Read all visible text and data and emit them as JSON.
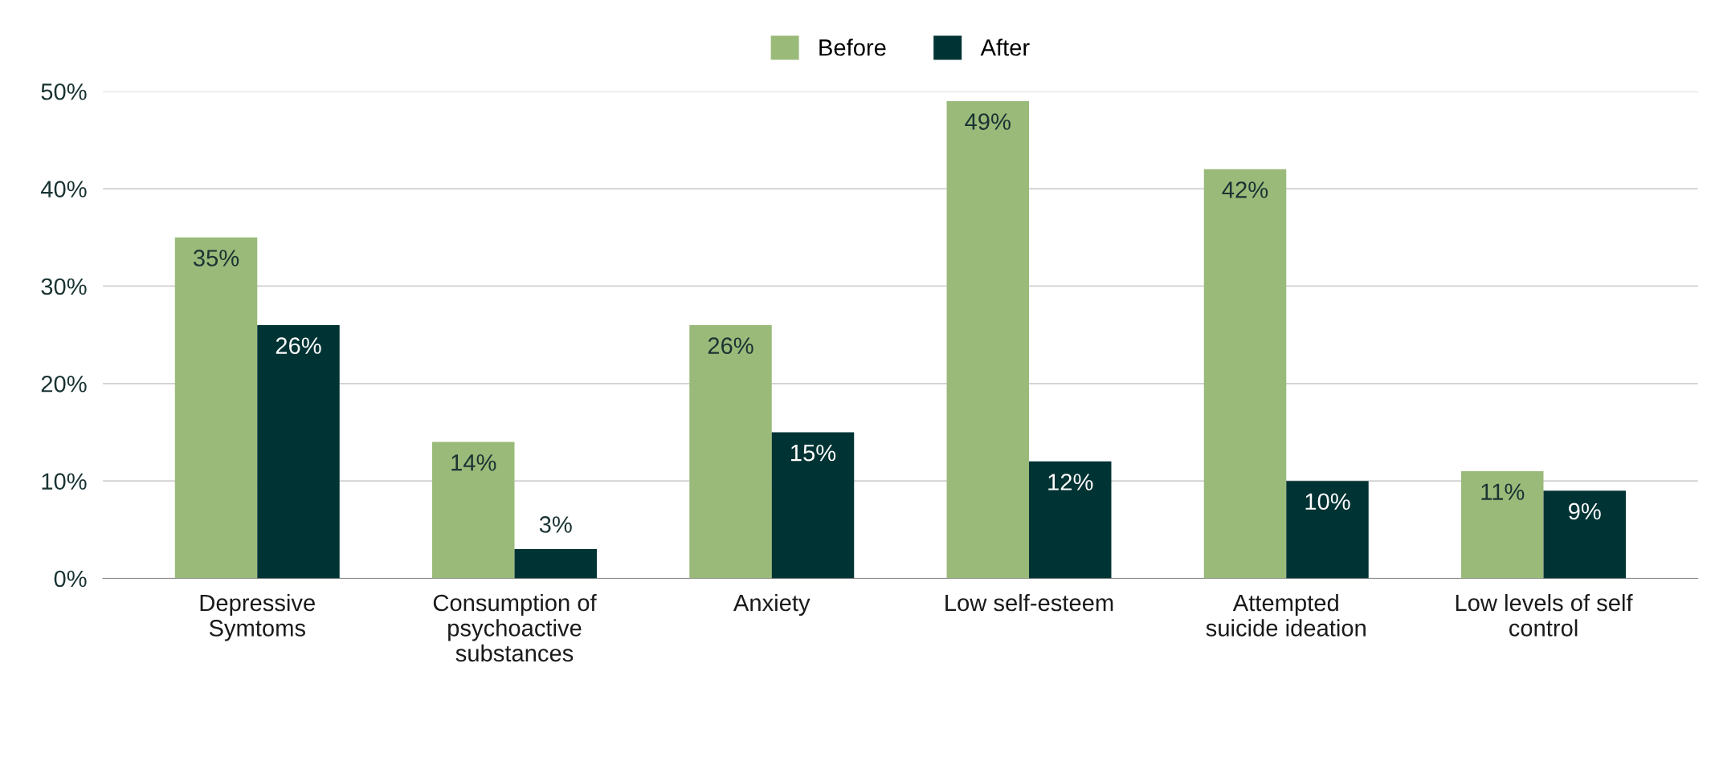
{
  "chart_data": {
    "type": "bar",
    "categories": [
      "Depressive\nSymtoms",
      "Consumption of\npsychoactive\nsubstances",
      "Anxiety",
      "Low self-esteem",
      "Attempted\nsuicide ideation",
      "Low levels of self\ncontrol"
    ],
    "series": [
      {
        "name": "Before",
        "color": "#9aba7a",
        "values": [
          35,
          14,
          26,
          49,
          42,
          11
        ],
        "value_labels": [
          "35%",
          "14%",
          "26%",
          "49%",
          "42%",
          "11%"
        ]
      },
      {
        "name": "After",
        "color": "#003333",
        "values": [
          26,
          3,
          15,
          12,
          10,
          9
        ],
        "value_labels": [
          "26%",
          "3%",
          "15%",
          "12%",
          "10%",
          "9%"
        ]
      }
    ],
    "ylim": [
      0,
      50
    ],
    "yticks": [
      {
        "value": 0,
        "label": "0%"
      },
      {
        "value": 10,
        "label": "10%"
      },
      {
        "value": 20,
        "label": "20%"
      },
      {
        "value": 30,
        "label": "30%"
      },
      {
        "value": 40,
        "label": "40%"
      },
      {
        "value": 50,
        "label": "50%"
      }
    ],
    "grid": "y",
    "legend": "top"
  }
}
